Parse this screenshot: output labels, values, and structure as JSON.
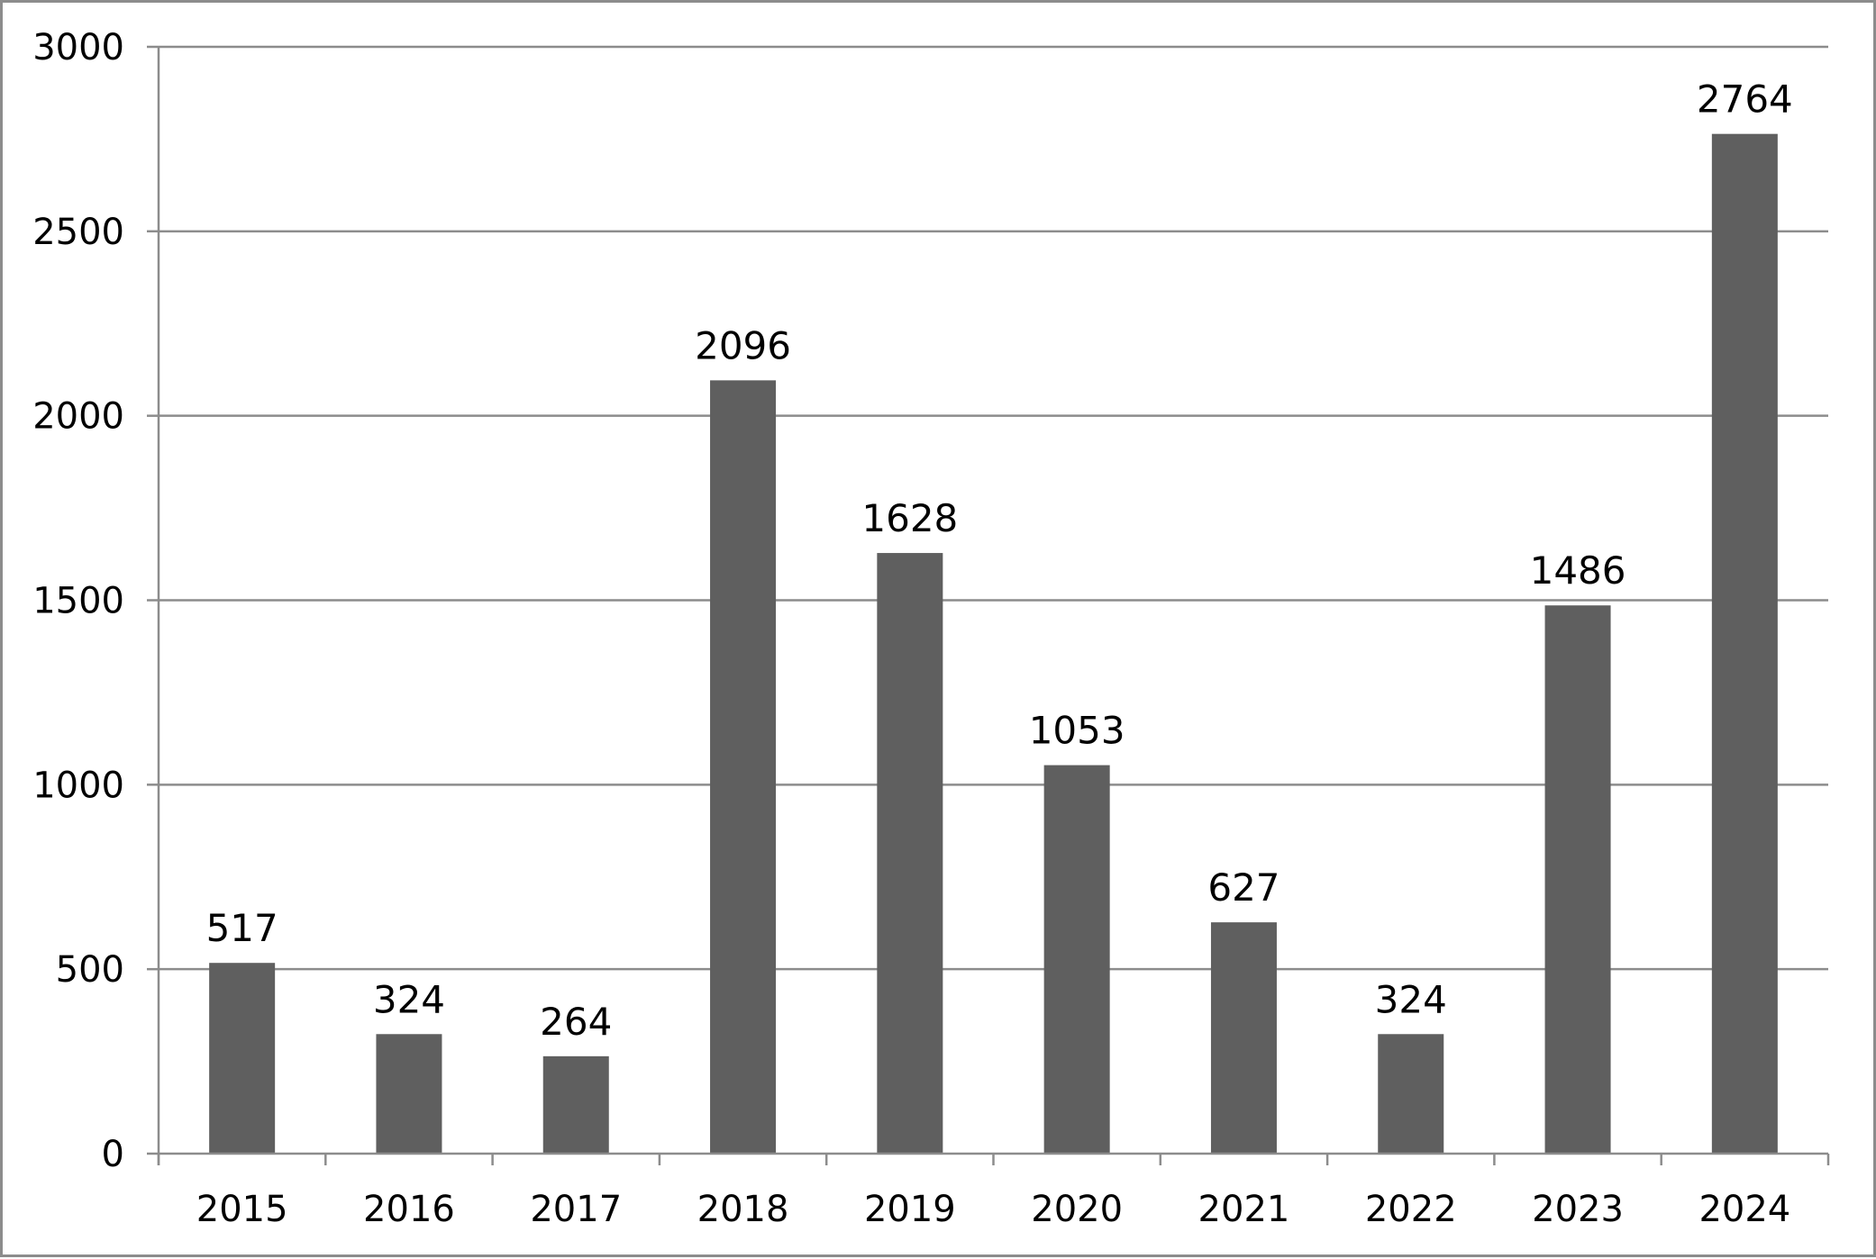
{
  "chart_data": {
    "type": "bar",
    "title": "",
    "xlabel": "",
    "ylabel": "",
    "categories": [
      "2015",
      "2016",
      "2017",
      "2018",
      "2019",
      "2020",
      "2021",
      "2022",
      "2023",
      "2024"
    ],
    "values": [
      517,
      324,
      264,
      2096,
      1628,
      1053,
      627,
      324,
      1486,
      2764
    ],
    "data_labels": [
      "517",
      "324",
      "264",
      "2096",
      "1628",
      "1053",
      "627",
      "324",
      "1486",
      "2764"
    ],
    "ylim": [
      0,
      3000
    ],
    "yticks": [
      0,
      500,
      1000,
      1500,
      2000,
      2500,
      3000
    ],
    "ytick_labels": [
      "0",
      "500",
      "1000",
      "1500",
      "2000",
      "2500",
      "3000"
    ],
    "grid": true,
    "legend": "none",
    "bar_color": "#5f5f5f",
    "grid_color": "#8c8c8c"
  }
}
